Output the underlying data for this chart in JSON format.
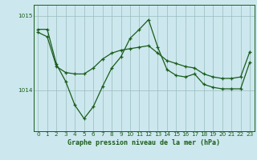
{
  "title": "Graphe pression niveau de la mer (hPa)",
  "background_color": "#cce8ee",
  "line_color": "#1a5c1a",
  "grid_color": "#99bbbb",
  "xlim": [
    -0.5,
    23.5
  ],
  "ylim": [
    1013.45,
    1015.15
  ],
  "yticks": [
    1014,
    1015
  ],
  "xticks": [
    0,
    1,
    2,
    3,
    4,
    5,
    6,
    7,
    8,
    9,
    10,
    11,
    12,
    13,
    14,
    15,
    16,
    17,
    18,
    19,
    20,
    21,
    22,
    23
  ],
  "pressure_data": [
    1014.82,
    1014.82,
    1014.35,
    1014.12,
    1013.8,
    1013.62,
    1013.78,
    1014.05,
    1014.3,
    1014.45,
    1014.7,
    1014.82,
    1014.95,
    1014.58,
    1014.28,
    1014.2,
    1014.18,
    1014.22,
    1014.08,
    1014.04,
    1014.02,
    1014.02,
    1014.02,
    1014.38
  ],
  "trend_data": [
    1014.78,
    1014.72,
    1014.32,
    1014.24,
    1014.22,
    1014.22,
    1014.3,
    1014.42,
    1014.5,
    1014.54,
    1014.56,
    1014.58,
    1014.6,
    1014.5,
    1014.4,
    1014.36,
    1014.32,
    1014.3,
    1014.22,
    1014.18,
    1014.16,
    1014.16,
    1014.18,
    1014.52
  ],
  "xlabel_fontsize": 6.0,
  "tick_fontsize": 5.2,
  "linewidth": 0.9,
  "markersize": 3.5
}
